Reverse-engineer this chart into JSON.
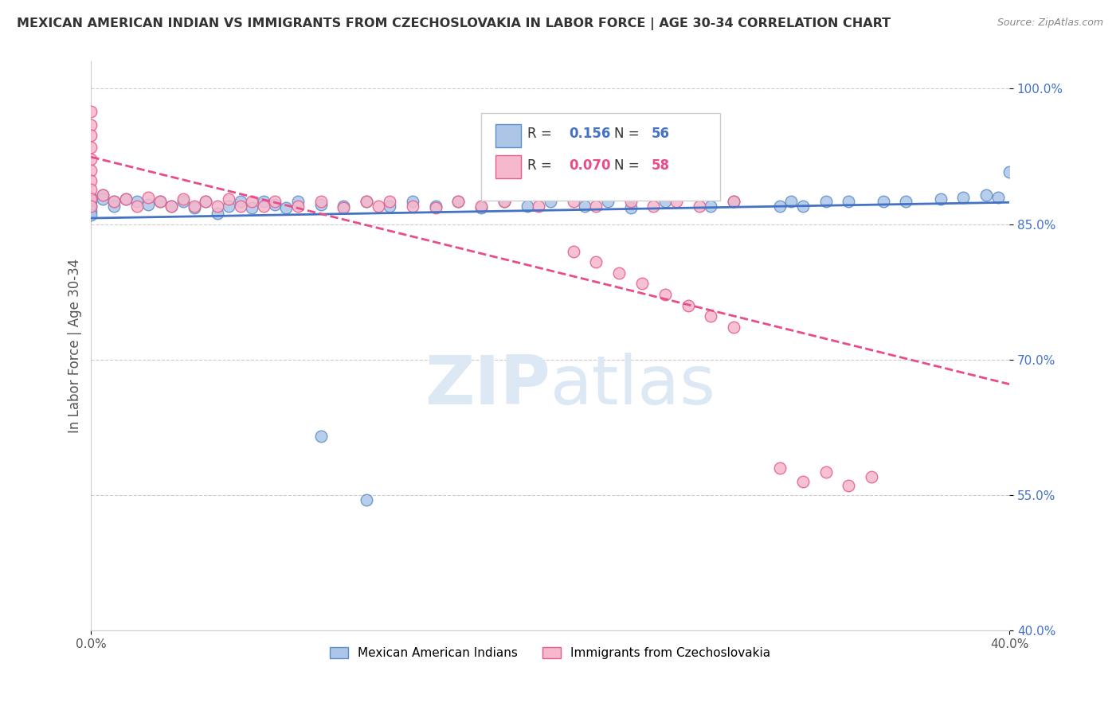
{
  "title": "MEXICAN AMERICAN INDIAN VS IMMIGRANTS FROM CZECHOSLOVAKIA IN LABOR FORCE | AGE 30-34 CORRELATION CHART",
  "source": "Source: ZipAtlas.com",
  "ylabel": "In Labor Force | Age 30-34",
  "xlim": [
    0.0,
    0.4
  ],
  "ylim": [
    0.4,
    1.03
  ],
  "yticks": [
    0.4,
    0.55,
    0.7,
    0.85,
    1.0
  ],
  "ytick_labels": [
    "40.0%",
    "55.0%",
    "70.0%",
    "85.0%",
    "100.0%"
  ],
  "xticks": [
    0.0,
    0.4
  ],
  "xtick_labels": [
    "0.0%",
    "40.0%"
  ],
  "legend_blue_label": "Mexican American Indians",
  "legend_pink_label": "Immigrants from Czechoslovakia",
  "blue_R": 0.156,
  "blue_N": 56,
  "pink_R": 0.07,
  "pink_N": 58,
  "blue_color": "#adc6e8",
  "blue_edge_color": "#5b8ec9",
  "pink_color": "#f5b8cc",
  "pink_edge_color": "#e85b8a",
  "blue_line_color": "#4472c4",
  "pink_line_color": "#e84c8b",
  "watermark_color": "#dde8f5",
  "blue_x": [
    0.0,
    0.0,
    0.0,
    0.0,
    0.0,
    0.005,
    0.005,
    0.01,
    0.01,
    0.015,
    0.02,
    0.025,
    0.03,
    0.035,
    0.04,
    0.045,
    0.05,
    0.055,
    0.06,
    0.065,
    0.07,
    0.075,
    0.08,
    0.085,
    0.09,
    0.1,
    0.11,
    0.12,
    0.13,
    0.14,
    0.15,
    0.16,
    0.17,
    0.18,
    0.19,
    0.2,
    0.215,
    0.225,
    0.235,
    0.25,
    0.27,
    0.28,
    0.3,
    0.305,
    0.31,
    0.32,
    0.33,
    0.345,
    0.355,
    0.37,
    0.38,
    0.39,
    0.395,
    0.4,
    0.1,
    0.12
  ],
  "blue_y": [
    0.875,
    0.87,
    0.865,
    0.86,
    0.88,
    0.882,
    0.878,
    0.875,
    0.87,
    0.878,
    0.875,
    0.872,
    0.875,
    0.87,
    0.875,
    0.868,
    0.875,
    0.862,
    0.87,
    0.875,
    0.868,
    0.875,
    0.872,
    0.868,
    0.875,
    0.872,
    0.87,
    0.875,
    0.87,
    0.875,
    0.87,
    0.875,
    0.868,
    0.875,
    0.87,
    0.875,
    0.87,
    0.875,
    0.868,
    0.875,
    0.87,
    0.875,
    0.87,
    0.875,
    0.87,
    0.875,
    0.875,
    0.875,
    0.875,
    0.878,
    0.88,
    0.882,
    0.88,
    0.908,
    0.615,
    0.545
  ],
  "pink_x": [
    0.0,
    0.0,
    0.0,
    0.0,
    0.0,
    0.0,
    0.0,
    0.0,
    0.0,
    0.0,
    0.005,
    0.01,
    0.015,
    0.02,
    0.025,
    0.03,
    0.035,
    0.04,
    0.045,
    0.05,
    0.055,
    0.06,
    0.065,
    0.07,
    0.075,
    0.08,
    0.09,
    0.1,
    0.11,
    0.12,
    0.125,
    0.13,
    0.14,
    0.15,
    0.16,
    0.17,
    0.18,
    0.195,
    0.21,
    0.22,
    0.235,
    0.245,
    0.255,
    0.265,
    0.28,
    0.3,
    0.31,
    0.32,
    0.33,
    0.34,
    0.21,
    0.22,
    0.23,
    0.24,
    0.25,
    0.26,
    0.27,
    0.28
  ],
  "pink_y": [
    0.975,
    0.96,
    0.948,
    0.935,
    0.922,
    0.91,
    0.898,
    0.888,
    0.878,
    0.87,
    0.882,
    0.875,
    0.878,
    0.87,
    0.88,
    0.875,
    0.87,
    0.878,
    0.87,
    0.875,
    0.87,
    0.878,
    0.87,
    0.875,
    0.87,
    0.875,
    0.87,
    0.875,
    0.868,
    0.875,
    0.87,
    0.875,
    0.87,
    0.868,
    0.875,
    0.87,
    0.875,
    0.87,
    0.875,
    0.87,
    0.875,
    0.87,
    0.875,
    0.87,
    0.875,
    0.58,
    0.565,
    0.575,
    0.56,
    0.57,
    0.82,
    0.808,
    0.796,
    0.784,
    0.772,
    0.76,
    0.748,
    0.736
  ]
}
